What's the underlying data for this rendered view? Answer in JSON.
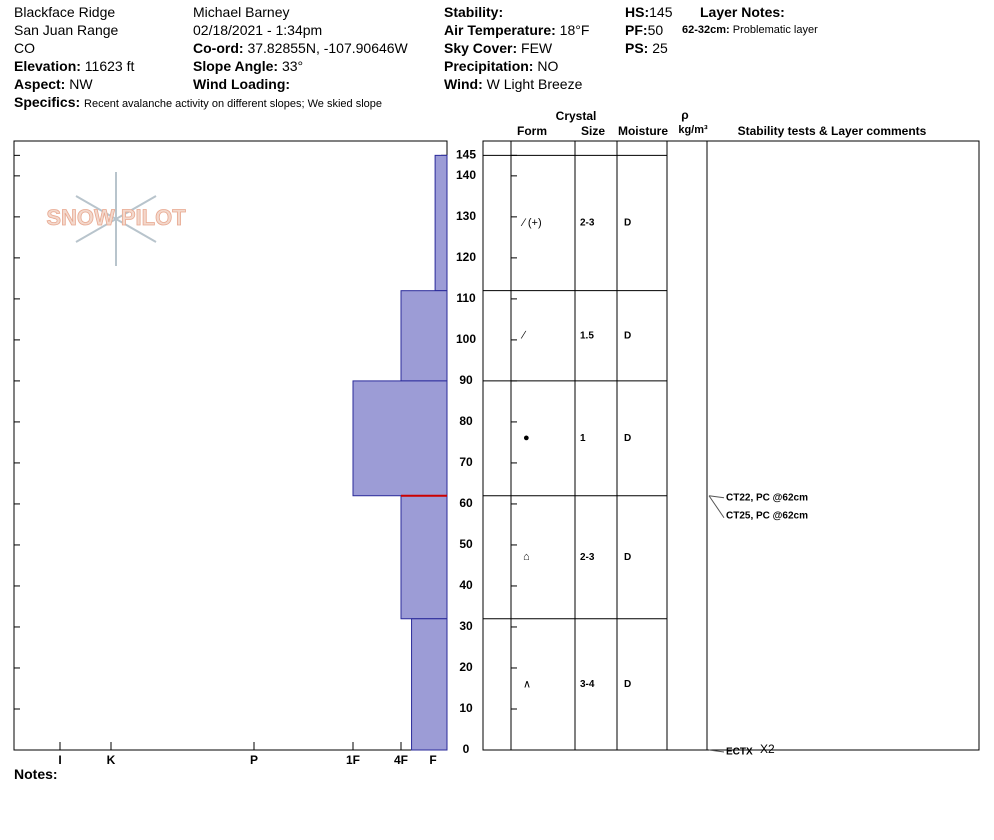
{
  "header": {
    "site": "Blackface Ridge",
    "range": "San Juan Range",
    "state": "CO",
    "observer": "Michael Barney",
    "date": "02/18/2021 - 1:34pm",
    "elevation": {
      "label": "Elevation:",
      "value": "11623 ft"
    },
    "aspect": {
      "label": "Aspect:",
      "value": "NW"
    },
    "specifics": {
      "label": "Specifics:",
      "value": "Recent avalanche activity on different slopes;  We skied slope"
    },
    "coord": {
      "label": "Co-ord:",
      "value": "37.82855N, -107.90646W"
    },
    "slope": {
      "label": "Slope Angle:",
      "value": "33°"
    },
    "wind_loading": {
      "label": "Wind Loading:"
    },
    "stability": {
      "label": "Stability:"
    },
    "air_temp": {
      "label": "Air Temperature:",
      "value": "18°F"
    },
    "sky": {
      "label": "Sky Cover:",
      "value": "FEW"
    },
    "precip": {
      "label": "Precipitation:",
      "value": "NO"
    },
    "wind": {
      "label": "Wind:",
      "value": "W Light Breeze"
    },
    "hs": {
      "label": "HS:",
      "value": "145"
    },
    "pf": {
      "label": "PF:",
      "value": "50"
    },
    "ps": {
      "label": "PS:",
      "value": "25"
    },
    "layer_notes": {
      "label": "Layer Notes:",
      "range": "62-32cm:",
      "note": "Problematic layer"
    }
  },
  "logo": "SNOW PILOT",
  "columns": {
    "crystal": "Crystal",
    "form": "Form",
    "size": "Size",
    "moisture": "Moisture",
    "rho": "ρ",
    "density": "kg/m³",
    "comments": "Stability tests & Layer comments"
  },
  "ylim": [
    0,
    148.5
  ],
  "yticks": [
    0,
    10,
    20,
    30,
    40,
    50,
    60,
    70,
    80,
    90,
    100,
    110,
    120,
    130,
    140,
    145
  ],
  "hardness_lim": [
    0,
    7
  ],
  "hardness_ticks": [
    {
      "value": 1,
      "label": "F"
    },
    {
      "value": 2,
      "label": "4F"
    },
    {
      "value": 3,
      "label": "1F"
    },
    {
      "value": 4,
      "label": "P"
    },
    {
      "value": 5,
      "label": "K"
    },
    {
      "value": 6,
      "label": "I"
    }
  ],
  "layers": [
    {
      "top": 145,
      "bottom": 112,
      "hardness": 0.85,
      "form": "∕ (+)",
      "size": "2-3",
      "moisture": "D"
    },
    {
      "top": 112,
      "bottom": 90,
      "hardness": 2,
      "form": "∕",
      "size": "1.5",
      "moisture": "D"
    },
    {
      "top": 90,
      "bottom": 62,
      "hardness": 3,
      "form": "●",
      "size": "1",
      "moisture": "D"
    },
    {
      "top": 62,
      "bottom": 32,
      "hardness": 2,
      "form": "⌂",
      "size": "2-3",
      "moisture": "D"
    },
    {
      "top": 32,
      "bottom": 0,
      "hardness": 1.67,
      "form": "∧",
      "size": "3-4",
      "moisture": "D"
    }
  ],
  "tests": [
    {
      "result": "CT22, PC @62cm",
      "height": 62
    },
    {
      "result": "CT25, PC @62cm",
      "height": 62
    },
    {
      "result": "ECTX",
      "count": "X2",
      "height": 0
    }
  ],
  "notes": "Notes:"
}
